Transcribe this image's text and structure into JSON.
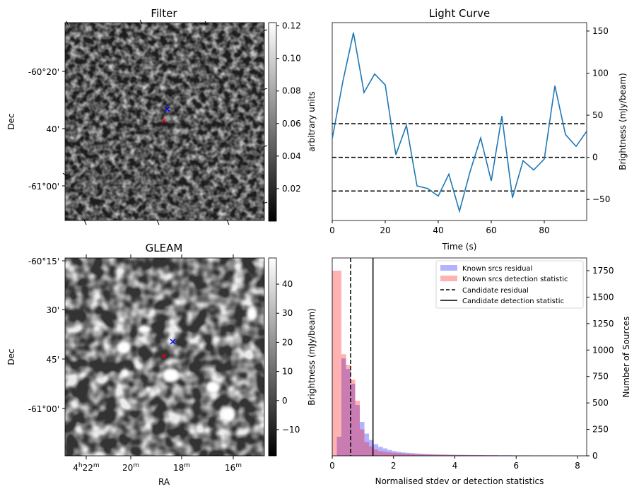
{
  "chart_data": [
    {
      "type": "heatmap",
      "title": "Filter",
      "xlabel": "",
      "ylabel": "Dec",
      "ytick_labels": [
        "-60°20'",
        "40'",
        "-61°00'"
      ],
      "colorbar": {
        "label": "arbitrary units",
        "ticks": [
          0.02,
          0.04,
          0.06,
          0.08,
          0.1,
          0.12
        ],
        "tick_labels": [
          "0.02",
          "0.04",
          "0.06",
          "0.08",
          "0.10",
          "0.12"
        ],
        "range": [
          0.0,
          0.122
        ]
      },
      "markers": [
        {
          "name": "candidate-marker",
          "symbol": "x",
          "color": "#0000ff"
        },
        {
          "name": "known-marker",
          "symbol": "x",
          "color": "#ff0000"
        }
      ]
    },
    {
      "type": "line",
      "title": "Light Curve",
      "xlabel": "Time (s)",
      "ylabel": "Brightness (mJy/beam)",
      "xlim": [
        0,
        96
      ],
      "ylim": [
        -75,
        160
      ],
      "xticks": [
        0,
        20,
        40,
        60,
        80
      ],
      "yticks": [
        -50,
        0,
        50,
        100,
        150
      ],
      "color": "#1f77b4",
      "x": [
        0,
        4,
        8,
        12,
        16,
        20,
        24,
        28,
        32,
        36,
        40,
        44,
        48,
        52,
        56,
        60,
        64,
        68,
        72,
        76,
        80,
        84,
        88,
        92,
        96
      ],
      "y": [
        22,
        90,
        148,
        77,
        99,
        86,
        3,
        38,
        -34,
        -37,
        -46,
        -20,
        -64,
        -17,
        23,
        -28,
        49,
        -48,
        -4,
        -15,
        -2,
        85,
        27,
        13,
        31
      ],
      "hlines": [
        40,
        0,
        -40
      ],
      "hline_style": "dashed black"
    },
    {
      "type": "heatmap",
      "title": "GLEAM",
      "xlabel": "RA",
      "ylabel": "Dec",
      "xtick_labels": [
        "4h22m",
        "20m",
        "18m",
        "16m"
      ],
      "ytick_labels": [
        "-60°15'",
        "30'",
        "45'",
        "-61°00'"
      ],
      "colorbar": {
        "label": "Brightness (mJy/beam)",
        "ticks": [
          -10,
          0,
          10,
          20,
          30,
          40
        ],
        "tick_labels": [
          "−10",
          "0",
          "10",
          "20",
          "30",
          "40"
        ],
        "range": [
          -19,
          49
        ]
      },
      "markers": [
        {
          "name": "candidate-marker",
          "symbol": "x",
          "color": "#0000ff"
        },
        {
          "name": "known-marker",
          "symbol": "x",
          "color": "#ff0000"
        }
      ]
    },
    {
      "type": "bar",
      "title": "",
      "xlabel": "Normalised stdev or detection statistics",
      "ylabel": "Brightness (mJy/beam)",
      "ylabel_right": "Number of Sources",
      "xlim": [
        0,
        8.3
      ],
      "ylim": [
        0,
        1870
      ],
      "xticks": [
        0,
        2,
        4,
        6,
        8
      ],
      "yticks": [
        0,
        250,
        500,
        750,
        1000,
        1250,
        1500,
        1750
      ],
      "bin_width": 0.15,
      "series": [
        {
          "name": "Known srcs residual",
          "color": "#0000ff",
          "alpha": 0.3,
          "values": [
            0,
            180,
            920,
            820,
            680,
            480,
            320,
            210,
            150,
            110,
            85,
            70,
            55,
            45,
            38,
            32,
            28,
            25,
            22,
            20,
            18,
            16,
            14,
            13,
            12,
            11,
            10,
            9,
            9,
            8,
            8,
            7,
            7,
            6,
            6,
            6,
            5,
            5,
            5,
            4,
            4,
            4,
            4,
            3,
            3,
            3,
            3,
            3,
            2,
            2,
            2,
            2,
            2,
            2,
            2
          ]
        },
        {
          "name": "Known srcs detection statistic",
          "color": "#ff0000",
          "alpha": 0.3,
          "values": [
            1750,
            1750,
            960,
            860,
            720,
            520,
            250,
            130,
            90,
            60,
            45,
            38,
            32,
            28,
            25,
            22,
            20,
            18,
            16,
            14,
            13,
            12,
            11,
            10,
            9,
            9,
            8,
            8,
            7,
            7,
            6,
            6,
            6,
            5,
            5,
            5,
            4,
            4,
            4,
            4,
            3,
            3,
            3,
            3,
            3,
            2,
            2,
            2,
            2,
            2,
            2,
            2,
            2,
            2,
            2
          ]
        }
      ],
      "vlines": [
        {
          "name": "Candidate residual",
          "x": 0.6,
          "style": "dashed"
        },
        {
          "name": "Candidate detection statistic",
          "x": 1.33,
          "style": "solid"
        }
      ],
      "legend_position": "top-right"
    }
  ]
}
